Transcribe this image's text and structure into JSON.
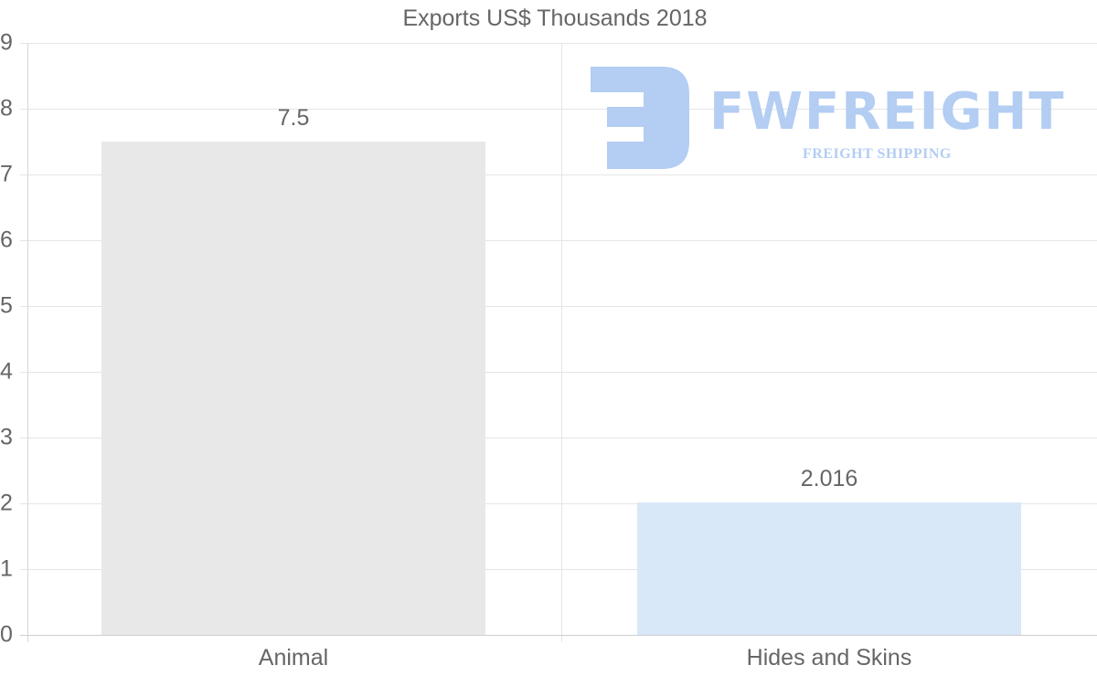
{
  "chart_data": {
    "type": "bar",
    "title": "Exports US$ Thousands 2018",
    "categories": [
      "Animal",
      "Hides and Skins"
    ],
    "values": [
      7.5,
      2.016
    ],
    "value_labels": [
      "7.5",
      "2.016"
    ],
    "colors": [
      "#e8e8e8",
      "#d8e8f8"
    ],
    "xlabel": "",
    "ylabel": "",
    "ylim": [
      0,
      9
    ],
    "yticks": [
      "0",
      "1",
      "2",
      "3",
      "4",
      "5",
      "6",
      "7",
      "8",
      "9"
    ],
    "grid": true,
    "legend": "none"
  },
  "watermark": {
    "brand": "FWFREIGHT",
    "tagline": "FREIGHT SHIPPING",
    "color": "#b3cdf3"
  }
}
